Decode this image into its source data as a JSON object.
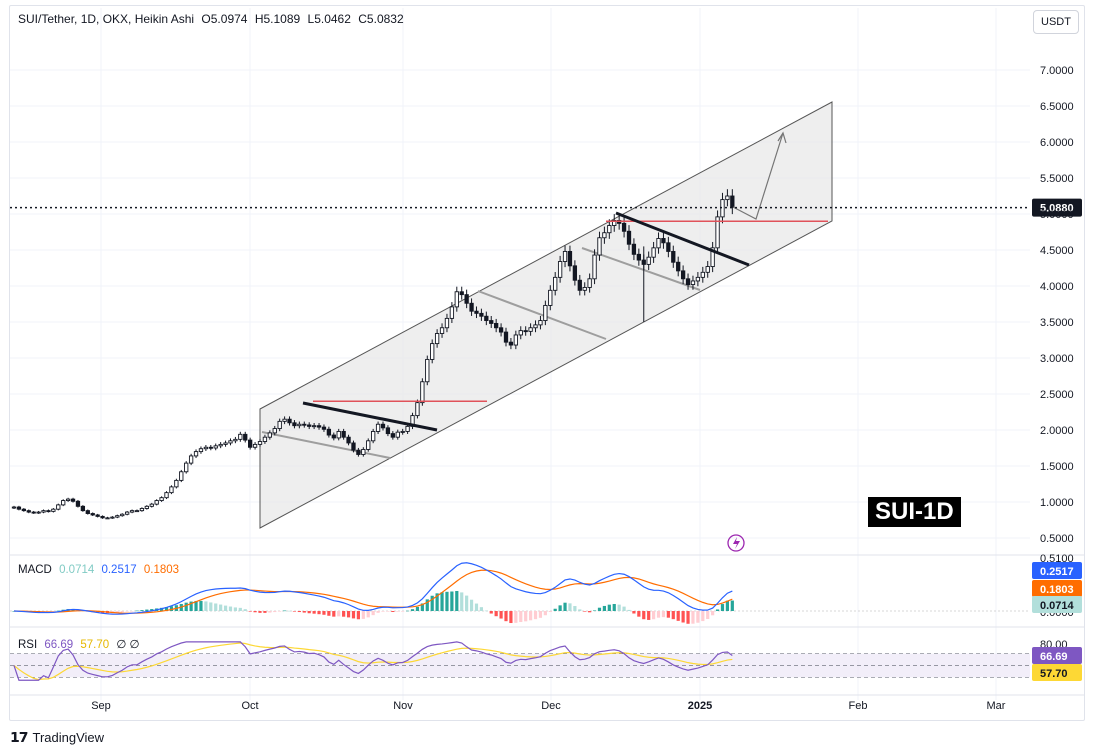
{
  "header": {
    "symbol": "SUI/Tether, 1D, OKX, Heikin Ashi",
    "open": "O5.0974",
    "high": "H5.1089",
    "low": "L5.0462",
    "close": "C5.0832"
  },
  "currency_button": "USDT",
  "symbol_tag": "SUI-1D",
  "logo_text": "TradingView",
  "colors": {
    "price_line": "#131722",
    "channel_fill": "#e8e8e8",
    "resistance": "#e0525a",
    "macd": "#2962ff",
    "signal": "#ff6d00",
    "hist_pos_strong": "#26a69a",
    "hist_pos_weak": "#b2dfdb",
    "hist_neg_strong": "#ff5252",
    "hist_neg_weak": "#ffcdd2",
    "rsi": "#7e57c2",
    "rsi_ma": "#fdd835"
  },
  "chart_data": [
    {
      "type": "candlestick",
      "title": "SUI/Tether, 1D, OKX, Heikin Ashi",
      "y_axis_labels": [
        "7.0000",
        "6.5000",
        "6.0000",
        "5.5000",
        "5.0000",
        "4.5000",
        "4.0000",
        "3.5000",
        "3.0000",
        "2.5000",
        "2.0000",
        "1.5000",
        "1.0000",
        "0.5000"
      ],
      "x_axis_labels": [
        "Sep",
        "Oct",
        "Nov",
        "Dec",
        "2025",
        "Feb",
        "Mar"
      ],
      "ylim": [
        0.47,
        7.45
      ],
      "last_price": "5.0880",
      "series_close": [
        0.93,
        0.9,
        0.88,
        0.86,
        0.85,
        0.86,
        0.88,
        0.87,
        0.9,
        0.96,
        1.02,
        1.04,
        1.01,
        0.94,
        0.88,
        0.84,
        0.82,
        0.8,
        0.78,
        0.78,
        0.79,
        0.81,
        0.83,
        0.86,
        0.88,
        0.88,
        0.91,
        0.94,
        0.97,
        1.02,
        1.06,
        1.13,
        1.21,
        1.3,
        1.42,
        1.54,
        1.64,
        1.7,
        1.74,
        1.76,
        1.75,
        1.78,
        1.8,
        1.82,
        1.85,
        1.87,
        1.94,
        1.86,
        1.76,
        1.8,
        1.84,
        1.9,
        1.96,
        2.02,
        2.12,
        2.15,
        2.1,
        2.06,
        2.08,
        2.07,
        2.05,
        2.06,
        2.04,
        2.01,
        1.93,
        1.89,
        1.98,
        1.9,
        1.82,
        1.72,
        1.66,
        1.73,
        1.85,
        1.98,
        2.08,
        2.03,
        1.95,
        1.9,
        1.97,
        1.98,
        2.05,
        2.2,
        2.38,
        2.67,
        2.98,
        3.2,
        3.34,
        3.42,
        3.55,
        3.71,
        3.92,
        3.88,
        3.76,
        3.65,
        3.62,
        3.58,
        3.52,
        3.48,
        3.42,
        3.36,
        3.22,
        3.18,
        3.32,
        3.38,
        3.37,
        3.42,
        3.46,
        3.52,
        3.73,
        3.94,
        4.12,
        4.34,
        4.48,
        4.28,
        4.08,
        3.94,
        3.98,
        4.1,
        4.43,
        4.67,
        4.74,
        4.84,
        4.91,
        4.87,
        4.76,
        4.58,
        4.44,
        4.36,
        4.3,
        4.4,
        4.53,
        4.66,
        4.6,
        4.48,
        4.33,
        4.21,
        4.1,
        4.02,
        4.07,
        4.12,
        4.19,
        4.27,
        4.53,
        4.96,
        5.2,
        5.25,
        5.09
      ],
      "resistance_lines": [
        2.4,
        4.9
      ],
      "annotation": "projected move to ~6.05"
    },
    {
      "type": "line",
      "title": "MACD",
      "legend": [
        {
          "name": "",
          "value": "0.0714"
        },
        {
          "name": "",
          "value": "0.2517"
        },
        {
          "name": "",
          "value": "0.1803"
        }
      ],
      "axis_labels": [
        "0.5100",
        "0.0000"
      ],
      "values": {
        "histogram": "0.0714",
        "macd": "0.2517",
        "signal": "0.1803"
      }
    },
    {
      "type": "line",
      "title": "RSI",
      "legend": [
        {
          "name": "",
          "value": "66.69"
        },
        {
          "name": "",
          "value": "57.70"
        }
      ],
      "extra_legend": "∅ ∅",
      "axis_labels": [
        "80.00"
      ],
      "values": {
        "rsi": "66.69",
        "rsi_ma": "57.70"
      }
    }
  ],
  "macd_label": "MACD",
  "rsi_label": "RSI"
}
